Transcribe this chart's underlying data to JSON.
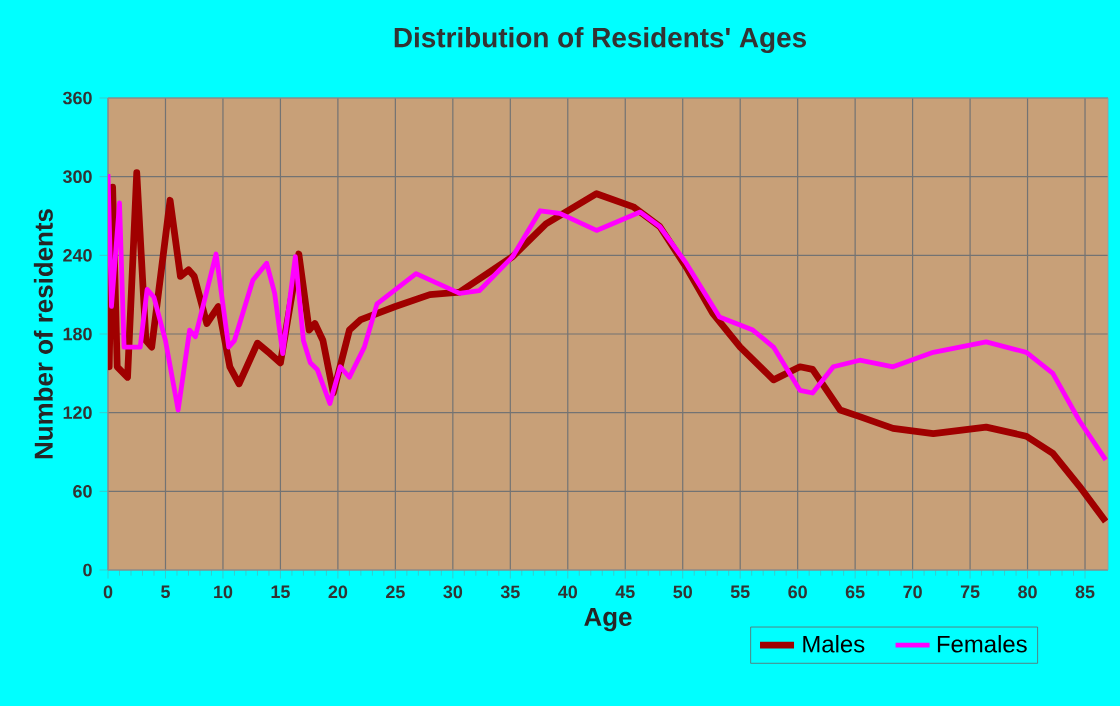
{
  "chart_data": {
    "type": "line",
    "title": "Distribution of Residents' Ages",
    "xlabel": "Age",
    "ylabel": "Number of residents",
    "xlim": [
      0,
      87
    ],
    "ylim": [
      0,
      360
    ],
    "xticks": [
      0,
      5,
      10,
      15,
      20,
      25,
      30,
      35,
      40,
      45,
      50,
      55,
      60,
      65,
      70,
      75,
      80,
      85
    ],
    "yticks": [
      0,
      60,
      120,
      180,
      240,
      300,
      360
    ],
    "grid": true,
    "legend": "bottom",
    "series": [
      {
        "name": "Males",
        "color": "#a00000",
        "x": [
          0,
          0.1,
          0.4,
          0.8,
          1.7,
          2.5,
          3.3,
          3.8,
          5.4,
          6.3,
          7,
          7.5,
          8.6,
          9.6,
          10.6,
          11.4,
          13,
          14.1,
          15,
          16.6,
          17.5,
          18,
          18.7,
          19.6,
          21,
          22,
          25,
          28,
          30.6,
          35.2,
          38.1,
          42.5,
          45.7,
          48,
          50.3,
          52.6,
          55,
          57.9,
          60.2,
          61.3,
          63.7,
          65.4,
          68.3,
          71.8,
          76.4,
          79.9,
          82.2,
          84.5,
          86.8
        ],
        "values": [
          191,
          155,
          292,
          155,
          147,
          303,
          175,
          170,
          282,
          224,
          229,
          224,
          188,
          201,
          155,
          142,
          173,
          165,
          158,
          241,
          183,
          188,
          175,
          135,
          183,
          191,
          201,
          210,
          212,
          239,
          264,
          287,
          277,
          262,
          231,
          196,
          170,
          145,
          155,
          153,
          122,
          117,
          108,
          104,
          109,
          102,
          89,
          64,
          37
        ]
      },
      {
        "name": "Females",
        "color": "#ff00ff",
        "x": [
          0,
          0.3,
          1.0,
          1.4,
          2.8,
          3.4,
          4,
          5,
          6.1,
          7.1,
          7.6,
          9.4,
          10.5,
          11,
          12.6,
          13.8,
          14.5,
          15.2,
          16.3,
          17,
          17.6,
          18.2,
          19.3,
          20.2,
          21,
          22.3,
          23.4,
          26.8,
          30.6,
          32.3,
          35.2,
          37.6,
          39.3,
          42.5,
          46.3,
          48,
          50.3,
          53.2,
          56.1,
          57.9,
          60.2,
          61.3,
          63.1,
          65.4,
          68.3,
          71.8,
          76.4,
          79.9,
          82.2,
          84.5,
          86.8
        ],
        "values": [
          302,
          201,
          280,
          170,
          170,
          214,
          208,
          175,
          122,
          183,
          178,
          241,
          170,
          175,
          221,
          234,
          211,
          165,
          239,
          175,
          158,
          153,
          127,
          155,
          147,
          170,
          203,
          226,
          211,
          213,
          239,
          274,
          272,
          259,
          273,
          262,
          234,
          193,
          183,
          170,
          137,
          135,
          155,
          160,
          155,
          166,
          174,
          166,
          150,
          114,
          84
        ]
      }
    ]
  }
}
